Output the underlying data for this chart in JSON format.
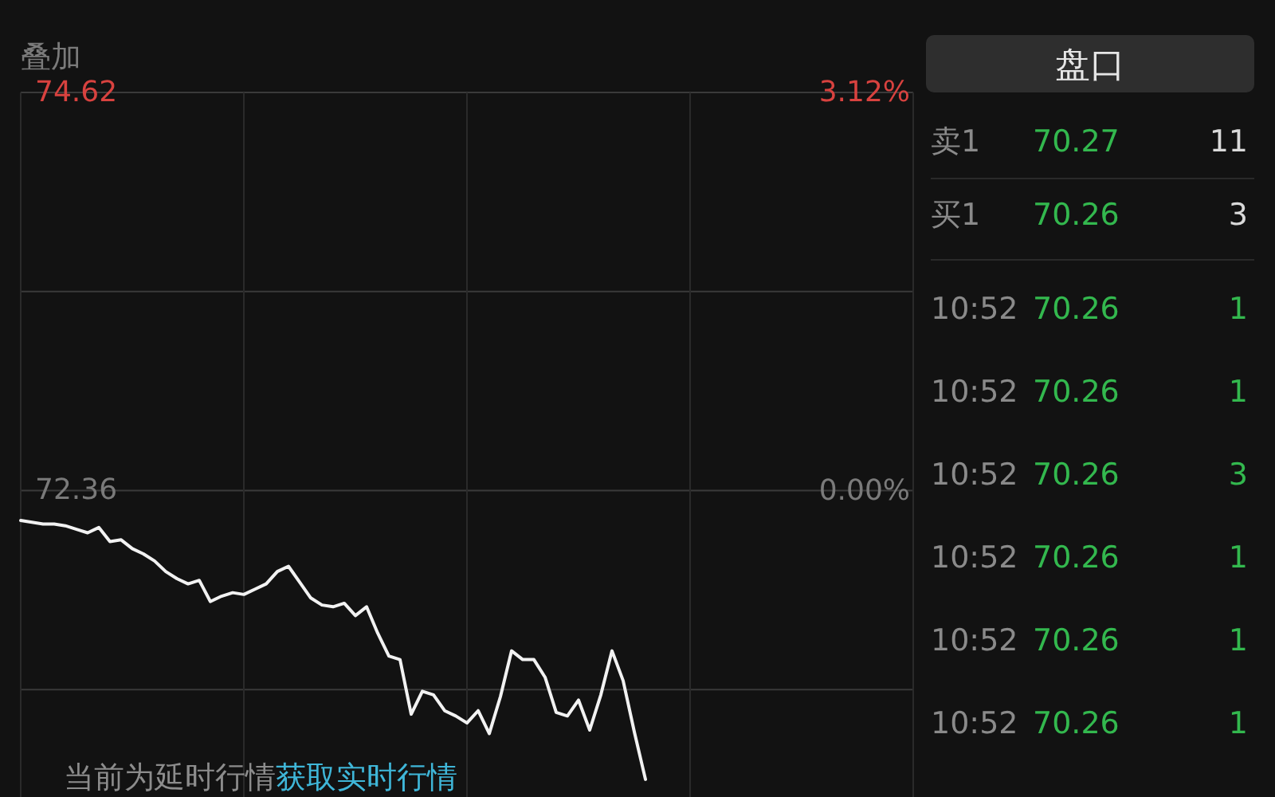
{
  "chart_data": [
    {
      "type": "line",
      "categories": [
        null,
        null,
        null,
        null,
        null,
        null,
        null,
        null,
        null,
        null,
        null,
        null,
        null,
        null,
        null,
        null,
        null,
        null,
        null,
        null,
        null,
        null,
        null,
        null,
        null,
        null,
        null,
        null,
        null,
        null,
        null,
        null,
        null,
        null,
        null,
        null,
        null,
        null,
        null,
        null,
        null,
        null,
        null,
        null,
        null,
        null,
        null,
        null,
        null,
        null,
        null,
        null,
        null,
        null,
        null,
        null,
        null,
        null,
        null,
        null,
        null,
        null,
        null,
        null,
        null,
        null,
        null,
        null,
        null,
        null,
        null,
        null,
        null,
        null,
        null,
        null,
        null,
        null,
        null,
        null,
        null
      ],
      "series": [
        {
          "color": "#f2f2f2",
          "values": [
            72.19,
            72.18,
            72.17,
            72.17,
            72.16,
            72.14,
            72.12,
            72.15,
            72.07,
            72.08,
            72.03,
            72.0,
            71.96,
            71.9,
            71.86,
            71.83,
            71.85,
            71.73,
            71.76,
            71.78,
            71.77,
            71.8,
            71.83,
            71.9,
            71.93,
            71.84,
            71.75,
            71.71,
            71.7,
            71.72,
            71.65,
            71.7,
            71.55,
            71.42,
            71.4,
            71.09,
            71.22,
            71.2,
            71.11,
            71.08,
            71.04,
            71.11,
            70.98,
            71.19,
            71.45,
            71.4,
            71.4,
            71.3,
            71.1,
            71.08,
            71.17,
            71.0,
            71.2,
            71.45,
            71.28,
            70.99,
            70.72,
            null,
            null,
            null,
            null,
            null,
            null,
            null,
            null,
            null,
            null,
            null,
            null,
            null,
            null,
            null,
            null,
            null,
            null,
            null,
            null,
            null,
            null,
            null,
            null
          ]
        }
      ],
      "ylim": [
        70.62,
        74.62
      ],
      "yticks": [
        74.62,
        {
          "value": 73.49,
          "label": null
        },
        72.36,
        {
          "value": 71.23,
          "label": null
        }
      ],
      "y2lim": [
        -2.4,
        3.12
      ],
      "y2ticks": [
        {
          "value": 3.12,
          "label": "3.12%"
        },
        {
          "value": 0,
          "label": "0.00%"
        }
      ],
      "grid": true,
      "annotations": [
        "叠加",
        "当前为延时行情",
        "获取实时行情"
      ]
    },
    {
      "type": "other",
      "title": "盘口",
      "annotations": [
        "卖1",
        "70.27",
        "11",
        "买1",
        "70.26",
        "3",
        "10:52",
        "70.26",
        "1",
        "10:52",
        "70.26",
        "1",
        "10:52",
        "70.26",
        "3",
        "10:52",
        "70.26",
        "1",
        "10:52",
        "70.26",
        "1",
        "10:52",
        "70.26",
        "1"
      ]
    }
  ]
}
